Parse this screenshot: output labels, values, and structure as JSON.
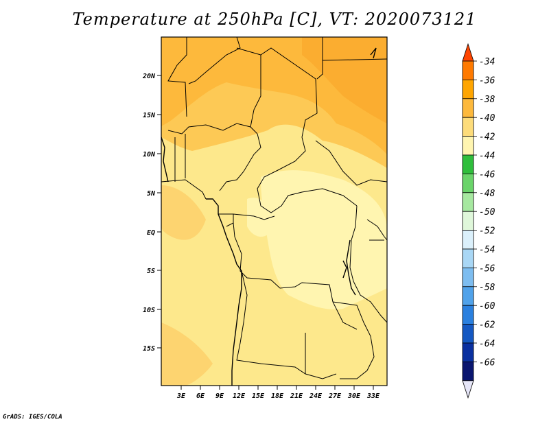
{
  "title": "Temperature at 250hPa [C], VT: 2020073121",
  "credit": "GrADS: IGES/COLA",
  "map": {
    "lat_labels": [
      "20N",
      "15N",
      "10N",
      "5N",
      "EQ",
      "5S",
      "10S",
      "15S"
    ],
    "lon_labels": [
      "3E",
      "6E",
      "9E",
      "12E",
      "15E",
      "18E",
      "21E",
      "24E",
      "27E",
      "30E",
      "33E"
    ]
  },
  "colorbar": {
    "labels": [
      "-34",
      "-36",
      "-38",
      "-40",
      "-42",
      "-44",
      "-46",
      "-48",
      "-50",
      "-52",
      "-54",
      "-56",
      "-58",
      "-60",
      "-62",
      "-64",
      "-66"
    ],
    "colors": [
      "#ff4500",
      "#ff7a00",
      "#ffa500",
      "#fdb93c",
      "#fddc7a",
      "#fff5b0",
      "#2fbe3c",
      "#6ad46a",
      "#a6e8a0",
      "#dff7da",
      "#dbf0fb",
      "#a9d7f5",
      "#7dbdf0",
      "#50a2ea",
      "#2a80df",
      "#1458c2",
      "#0a30a0",
      "#0a1670",
      "#e6e6f8"
    ]
  }
}
